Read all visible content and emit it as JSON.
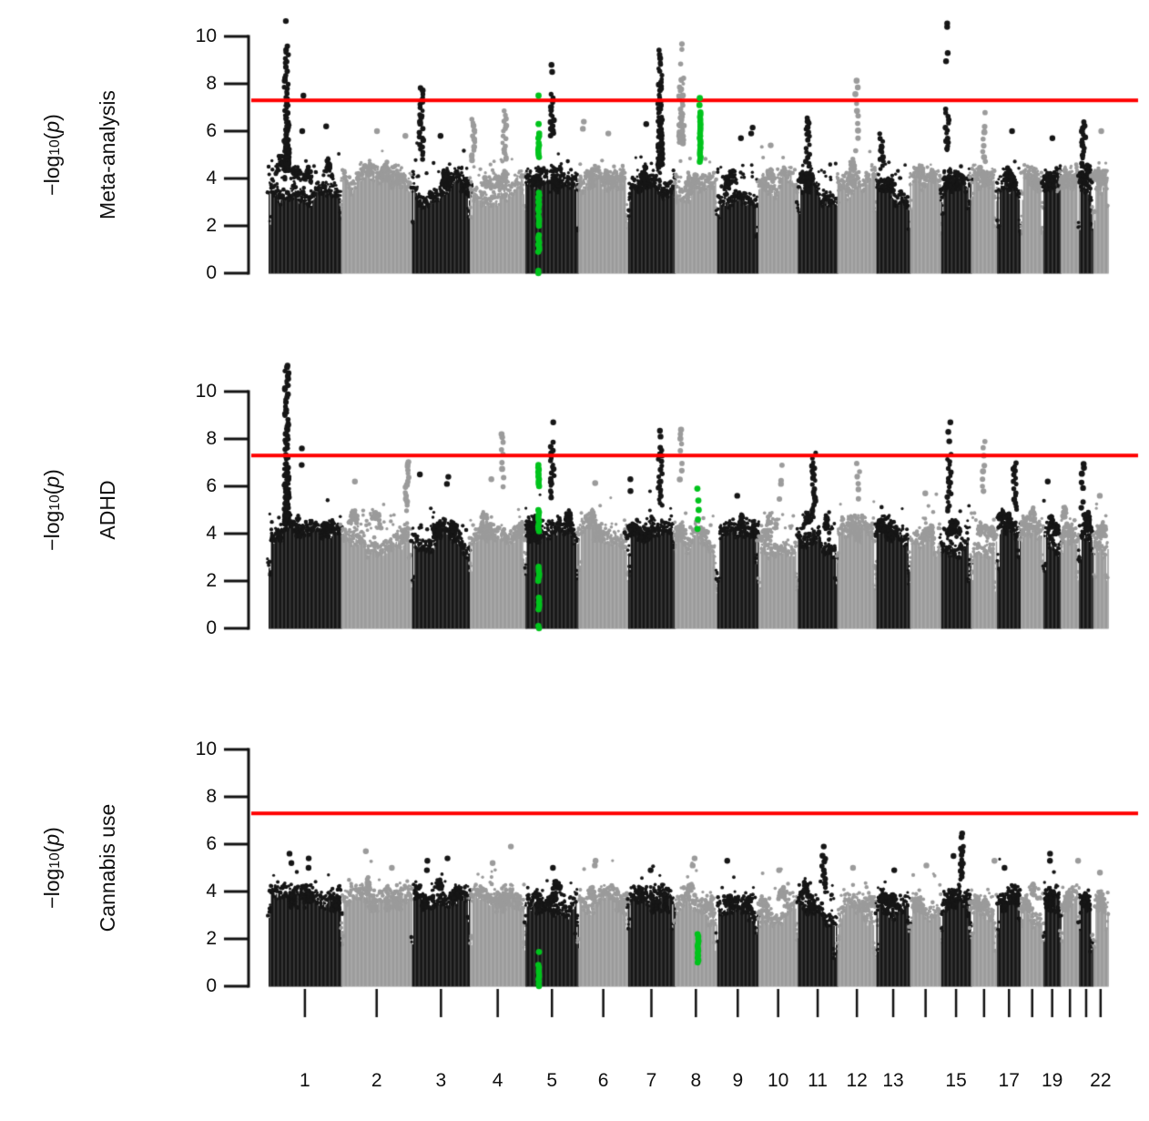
{
  "chart_data": {
    "type": "scatter",
    "subtype": "manhattan-plot",
    "title": "",
    "ylabel": "−log10(p)",
    "ylabel_parts": {
      "pre": "−log",
      "sub": "10",
      "open": "(",
      "var": "p",
      "close": ")"
    },
    "yticks": [
      0,
      2,
      4,
      6,
      8,
      10
    ],
    "ylim": [
      0,
      11.3
    ],
    "grid": false,
    "legend": false,
    "genome_wide_significance_line": 7.3,
    "colors": {
      "significance_line": "#ff0000",
      "odd_chromosome": "#161616",
      "even_chromosome": "#9b9b9b",
      "highlighted_locus": "#00c31c",
      "axis": "#111111",
      "background": "#ffffff"
    },
    "chromosomes": [
      {
        "label": "1",
        "rel": 249,
        "show_label": true
      },
      {
        "label": "2",
        "rel": 243,
        "show_label": true
      },
      {
        "label": "3",
        "rel": 198,
        "show_label": true
      },
      {
        "label": "4",
        "rel": 191,
        "show_label": true
      },
      {
        "label": "5",
        "rel": 181,
        "show_label": true
      },
      {
        "label": "6",
        "rel": 171,
        "show_label": true
      },
      {
        "label": "7",
        "rel": 159,
        "show_label": true
      },
      {
        "label": "8",
        "rel": 146,
        "show_label": true
      },
      {
        "label": "9",
        "rel": 141,
        "show_label": true
      },
      {
        "label": "10",
        "rel": 136,
        "show_label": true
      },
      {
        "label": "11",
        "rel": 135,
        "show_label": true
      },
      {
        "label": "12",
        "rel": 134,
        "show_label": true
      },
      {
        "label": "13",
        "rel": 115,
        "show_label": true
      },
      {
        "label": "14",
        "rel": 107,
        "show_label": false
      },
      {
        "label": "15",
        "rel": 102,
        "show_label": true
      },
      {
        "label": "16",
        "rel": 90,
        "show_label": false
      },
      {
        "label": "17",
        "rel": 81,
        "show_label": true
      },
      {
        "label": "18",
        "rel": 78,
        "show_label": false
      },
      {
        "label": "19",
        "rel": 59,
        "show_label": true
      },
      {
        "label": "20",
        "rel": 63,
        "show_label": false
      },
      {
        "label": "21",
        "rel": 48,
        "show_label": false
      },
      {
        "label": "22",
        "rel": 51,
        "show_label": true
      }
    ],
    "panels": [
      {
        "label": "Meta-analysis",
        "noise_ceiling": 4.25,
        "peaks": [
          {
            "chr": 1,
            "pos": 0.25,
            "range": [
              4.3,
              9.6
            ],
            "top_dots": [
              10.65
            ]
          },
          {
            "chr": 1,
            "pos": 0.47,
            "top_dots": [
              6.0,
              7.5
            ]
          },
          {
            "chr": 1,
            "pos": 0.78,
            "top_dots": [
              6.2
            ]
          },
          {
            "chr": 2,
            "pos": 0.5,
            "top_dots": [
              6.0
            ]
          },
          {
            "chr": 2,
            "pos": 0.9,
            "top_dots": [
              5.8
            ]
          },
          {
            "chr": 3,
            "pos": 0.16,
            "range": [
              4.8,
              7.85
            ]
          },
          {
            "chr": 3,
            "pos": 0.5,
            "top_dots": [
              5.8
            ]
          },
          {
            "chr": 4,
            "pos": 0.07,
            "range": [
              4.8,
              6.5
            ]
          },
          {
            "chr": 4,
            "pos": 0.62,
            "range": [
              4.8,
              6.9
            ]
          },
          {
            "chr": 5,
            "pos": 0.51,
            "range": [
              5.8,
              7.6
            ],
            "top_dots": [
              8.5,
              8.8
            ]
          },
          {
            "chr": 6,
            "pos": 0.09,
            "top_dots": [
              6.1,
              6.4
            ]
          },
          {
            "chr": 6,
            "pos": 0.6,
            "top_dots": [
              5.9
            ]
          },
          {
            "chr": 7,
            "pos": 0.69,
            "range": [
              4.5,
              9.4
            ]
          },
          {
            "chr": 7,
            "pos": 0.4,
            "top_dots": [
              6.3
            ]
          },
          {
            "chr": 8,
            "pos": 0.16,
            "range": [
              5.5,
              9.8
            ],
            "sparse": true
          },
          {
            "chr": 9,
            "pos": 0.55,
            "top_dots": [
              5.7
            ]
          },
          {
            "chr": 9,
            "pos": 0.85,
            "top_dots": [
              5.9,
              6.15
            ]
          },
          {
            "chr": 10,
            "pos": 0.3,
            "top_dots": [
              5.4
            ]
          },
          {
            "chr": 11,
            "pos": 0.25,
            "range": [
              4.5,
              6.6
            ]
          },
          {
            "chr": 12,
            "pos": 0.5,
            "range": [
              5.2,
              8.2
            ],
            "sparse": true
          },
          {
            "chr": 13,
            "pos": 0.15,
            "range": [
              4.4,
              5.9
            ]
          },
          {
            "chr": 15,
            "pos": 0.2,
            "range": [
              5.2,
              6.9
            ],
            "top_dots": [
              8.95,
              9.3,
              10.4,
              10.55
            ]
          },
          {
            "chr": 16,
            "pos": 0.5,
            "range": [
              4.7,
              7.0
            ],
            "sparse": true
          },
          {
            "chr": 17,
            "pos": 0.6,
            "top_dots": [
              6.0
            ]
          },
          {
            "chr": 19,
            "pos": 0.5,
            "top_dots": [
              5.7
            ]
          },
          {
            "chr": 21,
            "pos": 0.3,
            "range": [
              4.5,
              6.5
            ]
          },
          {
            "chr": 22,
            "pos": 0.5,
            "top_dots": [
              6.0
            ]
          }
        ],
        "highlighted_loci": [
          {
            "chr": 5,
            "pos": 0.25,
            "segments": [
              [
                0,
                0.15
              ],
              [
                0.9,
                1.7
              ],
              [
                2.0,
                2.45
              ],
              [
                2.6,
                3.5
              ],
              [
                4.9,
                5.5
              ],
              [
                5.7,
                5.95
              ]
            ],
            "dots": [
              6.3,
              7.5
            ]
          },
          {
            "chr": 8,
            "pos": 0.6,
            "segments": [
              [
                4.7,
                6.8
              ]
            ],
            "dots": [
              7.1,
              7.4
            ]
          }
        ]
      },
      {
        "label": "ADHD",
        "noise_ceiling": 4.45,
        "peaks": [
          {
            "chr": 1,
            "pos": 0.25,
            "range": [
              4.4,
              11.2
            ]
          },
          {
            "chr": 1,
            "pos": 0.47,
            "top_dots": [
              6.9,
              7.6
            ]
          },
          {
            "chr": 2,
            "pos": 0.2,
            "top_dots": [
              6.2
            ]
          },
          {
            "chr": 2,
            "pos": 0.93,
            "range": [
              5.0,
              7.1
            ]
          },
          {
            "chr": 3,
            "pos": 0.15,
            "top_dots": [
              6.5
            ]
          },
          {
            "chr": 3,
            "pos": 0.62,
            "top_dots": [
              6.1,
              6.4
            ]
          },
          {
            "chr": 4,
            "pos": 0.4,
            "top_dots": [
              6.3
            ]
          },
          {
            "chr": 4,
            "pos": 0.59,
            "range": [
              6.0,
              8.3
            ],
            "sparse": true
          },
          {
            "chr": 5,
            "pos": 0.51,
            "range": [
              5.5,
              8.0
            ],
            "top_dots": [
              8.7
            ]
          },
          {
            "chr": 6,
            "pos": 0.33,
            "range": [
              6.1,
              7.2
            ],
            "sparse": true
          },
          {
            "chr": 7,
            "pos": 0.05,
            "top_dots": [
              5.8,
              6.3
            ]
          },
          {
            "chr": 7,
            "pos": 0.69,
            "range": [
              5.2,
              7.7
            ],
            "top_dots": [
              8.1,
              8.35
            ]
          },
          {
            "chr": 8,
            "pos": 0.15,
            "range": [
              6.3,
              8.5
            ],
            "sparse": true
          },
          {
            "chr": 9,
            "pos": 0.5,
            "top_dots": [
              5.6
            ]
          },
          {
            "chr": 10,
            "pos": 0.57,
            "range": [
              5.5,
              6.9
            ],
            "sparse": true
          },
          {
            "chr": 11,
            "pos": 0.4,
            "range": [
              4.8,
              7.5
            ]
          },
          {
            "chr": 12,
            "pos": 0.53,
            "range": [
              5.2,
              7.7
            ],
            "sparse": true
          },
          {
            "chr": 14,
            "pos": 0.5,
            "top_dots": [
              5.7
            ]
          },
          {
            "chr": 15,
            "pos": 0.27,
            "range": [
              5.0,
              7.4
            ],
            "top_dots": [
              7.9,
              8.3,
              8.7
            ]
          },
          {
            "chr": 16,
            "pos": 0.48,
            "range": [
              5.8,
              8.1
            ],
            "sparse": true
          },
          {
            "chr": 17,
            "pos": 0.74,
            "range": [
              5.0,
              7.0
            ]
          },
          {
            "chr": 19,
            "pos": 0.3,
            "top_dots": [
              6.2
            ]
          },
          {
            "chr": 21,
            "pos": 0.25,
            "range": [
              4.8,
              7.0
            ],
            "sparse": true
          },
          {
            "chr": 22,
            "pos": 0.5,
            "top_dots": [
              5.6
            ]
          }
        ],
        "highlighted_loci": [
          {
            "chr": 5,
            "pos": 0.25,
            "segments": [
              [
                0,
                0.15
              ],
              [
                0.8,
                1.35
              ],
              [
                2.0,
                2.65
              ],
              [
                4.1,
                5.05
              ],
              [
                6.0,
                6.9
              ]
            ],
            "dots": []
          },
          {
            "chr": 8,
            "pos": 0.55,
            "segments": [],
            "dots": [
              4.2,
              4.6,
              5.0,
              5.4,
              5.9
            ]
          }
        ]
      },
      {
        "label": "Cannabis use",
        "noise_ceiling": 3.95,
        "peaks": [
          {
            "chr": 1,
            "pos": 0.3,
            "top_dots": [
              5.2,
              5.6
            ]
          },
          {
            "chr": 1,
            "pos": 0.55,
            "top_dots": [
              5.0,
              5.4
            ]
          },
          {
            "chr": 2,
            "pos": 0.35,
            "top_dots": [
              5.7
            ]
          },
          {
            "chr": 2,
            "pos": 0.7,
            "top_dots": [
              5.0
            ]
          },
          {
            "chr": 3,
            "pos": 0.25,
            "top_dots": [
              4.9,
              5.3
            ]
          },
          {
            "chr": 3,
            "pos": 0.6,
            "top_dots": [
              5.4
            ]
          },
          {
            "chr": 4,
            "pos": 0.4,
            "top_dots": [
              5.2
            ]
          },
          {
            "chr": 4,
            "pos": 0.75,
            "top_dots": [
              5.9
            ]
          },
          {
            "chr": 5,
            "pos": 0.5,
            "top_dots": [
              5.0
            ]
          },
          {
            "chr": 6,
            "pos": 0.35,
            "top_dots": [
              5.1,
              5.3
            ]
          },
          {
            "chr": 7,
            "pos": 0.5,
            "top_dots": [
              4.9
            ]
          },
          {
            "chr": 8,
            "pos": 0.45,
            "top_dots": [
              5.1,
              5.4
            ]
          },
          {
            "chr": 9,
            "pos": 0.25,
            "top_dots": [
              5.3
            ]
          },
          {
            "chr": 10,
            "pos": 0.5,
            "top_dots": [
              4.9
            ]
          },
          {
            "chr": 11,
            "pos": 0.65,
            "range": [
              4.2,
              5.5
            ],
            "top_dots": [
              5.9
            ]
          },
          {
            "chr": 12,
            "pos": 0.4,
            "top_dots": [
              5.0
            ]
          },
          {
            "chr": 13,
            "pos": 0.5,
            "top_dots": [
              4.9
            ]
          },
          {
            "chr": 14,
            "pos": 0.5,
            "top_dots": [
              5.1
            ]
          },
          {
            "chr": 15,
            "pos": 0.45,
            "top_dots": [
              5.5
            ]
          },
          {
            "chr": 15,
            "pos": 0.7,
            "range": [
              4.5,
              6.0
            ],
            "top_dots": [
              6.3,
              6.45
            ]
          },
          {
            "chr": 16,
            "pos": 0.9,
            "top_dots": [
              5.3
            ]
          },
          {
            "chr": 17,
            "pos": 0.3,
            "top_dots": [
              5.0
            ]
          },
          {
            "chr": 19,
            "pos": 0.4,
            "top_dots": [
              5.3,
              5.6
            ]
          },
          {
            "chr": 20,
            "pos": 0.9,
            "top_dots": [
              5.3
            ]
          },
          {
            "chr": 22,
            "pos": 0.5,
            "top_dots": [
              4.8
            ]
          }
        ],
        "highlighted_loci": [
          {
            "chr": 5,
            "pos": 0.25,
            "segments": [
              [
                0,
                0.9
              ]
            ],
            "dots": [
              1.45
            ]
          },
          {
            "chr": 8,
            "pos": 0.55,
            "segments": [
              [
                1.0,
                2.3
              ]
            ],
            "dots": []
          }
        ]
      }
    ]
  }
}
